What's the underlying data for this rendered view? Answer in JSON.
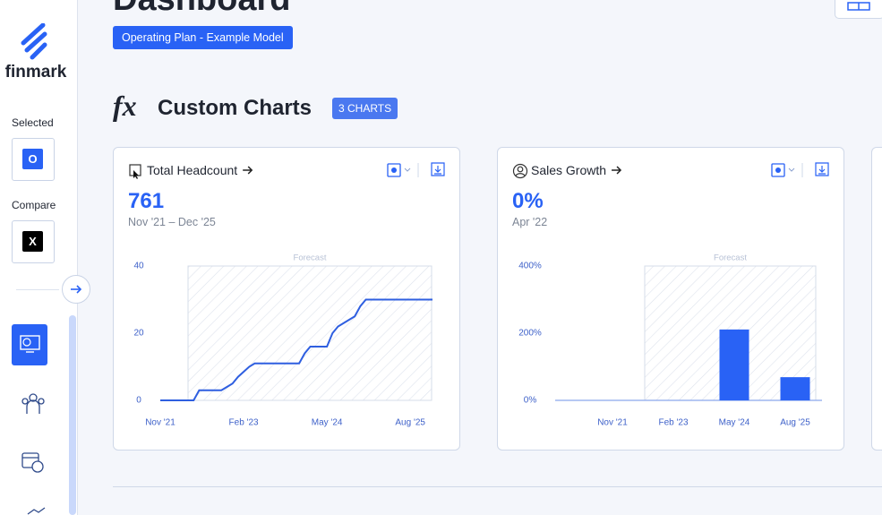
{
  "sidebar": {
    "logo": "finmark",
    "selected_label": "Selected",
    "selected_value": "O",
    "compare_label": "Compare",
    "compare_value": "X"
  },
  "header": {
    "title": "Dashboard",
    "plan_badge": "Operating Plan - Example Model"
  },
  "section": {
    "icon": "fx",
    "title": "Custom Charts",
    "count_badge": "3 CHARTS"
  },
  "cards": [
    {
      "title": "Total Headcount",
      "value": "761",
      "period": "Nov '21 – Dec '25",
      "chart_data": {
        "type": "line",
        "annotation": "Forecast",
        "categories": [
          "Nov '21",
          null,
          null,
          null,
          null,
          null,
          null,
          null,
          null,
          null,
          null,
          null,
          null,
          null,
          null,
          "Feb '23",
          null,
          null,
          null,
          null,
          null,
          null,
          null,
          null,
          null,
          null,
          null,
          null,
          null,
          null,
          "May '24",
          null,
          null,
          null,
          null,
          null,
          null,
          null,
          null,
          null,
          null,
          null,
          null,
          null,
          null,
          "Aug '25",
          null,
          null,
          null,
          null
        ],
        "values": [
          0,
          0,
          0,
          0,
          0,
          0,
          0,
          3,
          3,
          3,
          3,
          3,
          4,
          5,
          7,
          8.5,
          10,
          11,
          11,
          11,
          11,
          11,
          11,
          11,
          11,
          11,
          14,
          16,
          16,
          16,
          16,
          20,
          22,
          23,
          24,
          25,
          28,
          30,
          30,
          30,
          30,
          30,
          30,
          30,
          30,
          30,
          30,
          30,
          30,
          30
        ],
        "color": "#2f5fe0",
        "ylim": [
          0,
          40
        ],
        "yticks": [
          0,
          20,
          40
        ]
      }
    },
    {
      "title": "Sales Growth",
      "value": "0%",
      "period": "Apr '22",
      "chart_data": {
        "type": "bar",
        "annotation": "Forecast",
        "categories": [
          "Nov '21",
          "Feb '23",
          "May '24",
          "Aug '25"
        ],
        "values": [
          0,
          0,
          211,
          69
        ],
        "color": "#2962f5",
        "ylim": [
          0,
          400
        ],
        "yticks": [
          {
            "value": 0,
            "label": "0%"
          },
          {
            "value": 200,
            "label": "200%"
          },
          {
            "value": 400,
            "label": "400%"
          }
        ]
      }
    }
  ]
}
